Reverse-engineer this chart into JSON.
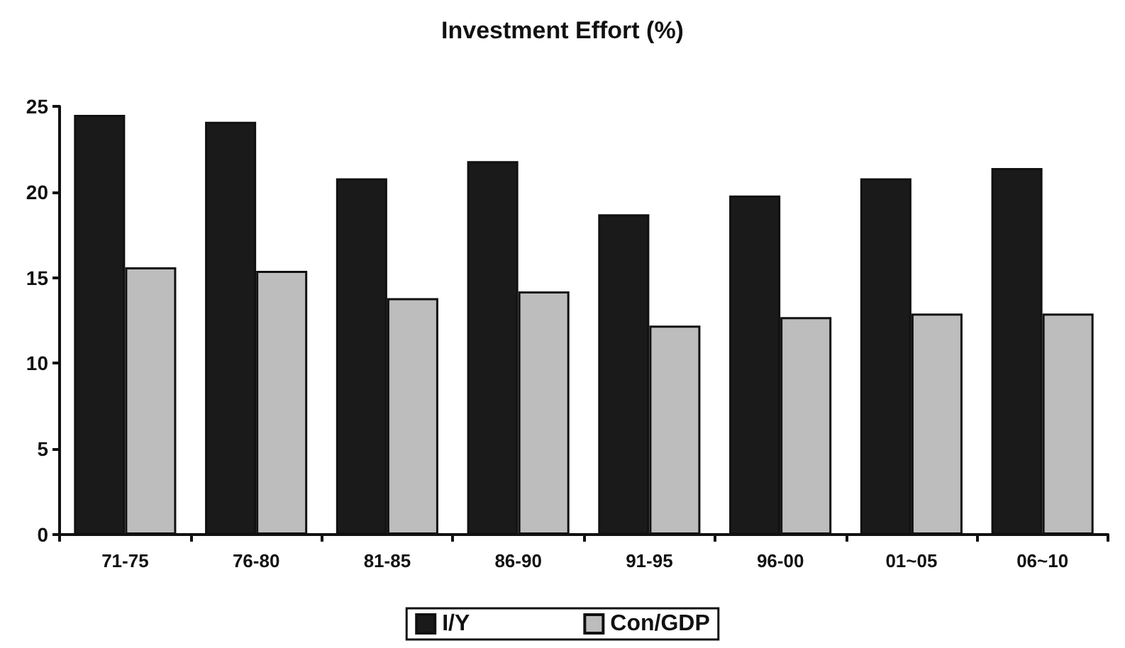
{
  "chart_data": {
    "type": "bar",
    "title": "Investment Effort (%)",
    "categories": [
      "71-75",
      "76-80",
      "81-85",
      "86-90",
      "91-95",
      "96-00",
      "01~05",
      "06~10"
    ],
    "series": [
      {
        "name": "I/Y",
        "color": "#1a1a1a",
        "values": [
          24.5,
          24.1,
          20.8,
          21.8,
          18.7,
          19.8,
          20.8,
          21.4
        ]
      },
      {
        "name": "Con/GDP",
        "color": "#bdbdbd",
        "values": [
          15.6,
          15.4,
          13.8,
          14.2,
          12.2,
          12.7,
          12.9,
          12.9
        ]
      }
    ],
    "ylim": [
      0,
      25
    ],
    "yticks": [
      0,
      5,
      10,
      15,
      20,
      25
    ],
    "grid": false,
    "legend": "bottom"
  }
}
